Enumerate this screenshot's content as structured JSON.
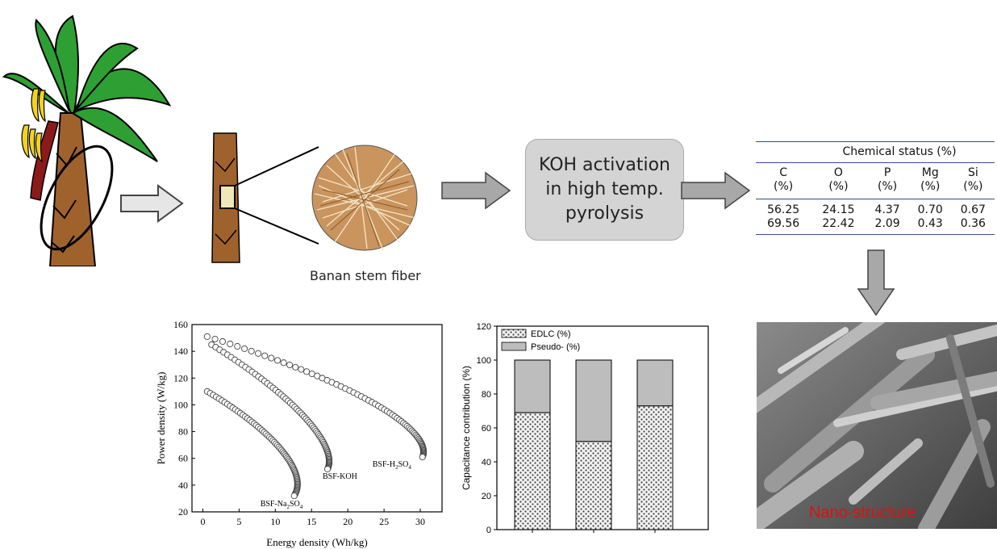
{
  "process": {
    "caption": "Banan stem fiber",
    "activation_lines": [
      "KOH activation",
      "in high temp.",
      "pyrolysis"
    ]
  },
  "chemical_table": {
    "title": "Chemical status (%)",
    "headers": [
      [
        "C",
        "(%)"
      ],
      [
        "O",
        "(%)"
      ],
      [
        "P",
        "(%)"
      ],
      [
        "Mg",
        "(%)"
      ],
      [
        "Si",
        "(%)"
      ]
    ],
    "rows": [
      [
        "56.25",
        "24.15",
        "4.37",
        "0.70",
        "0.67"
      ],
      [
        "69.56",
        "22.42",
        "2.09",
        "0.43",
        "0.36"
      ]
    ]
  },
  "sem": {
    "label": "Nano-structure"
  },
  "chart_data": [
    {
      "type": "scatter",
      "xlabel": "Energy density (Wh/kg)",
      "ylabel": "Power density (W/kg)",
      "xlim": [
        -1.5,
        33
      ],
      "ylim": [
        20,
        160
      ],
      "xticks": [
        0,
        5,
        10,
        15,
        20,
        25,
        30
      ],
      "yticks": [
        20,
        40,
        60,
        80,
        100,
        120,
        140,
        160
      ],
      "series": [
        {
          "name": "BSF-Na2SO4",
          "label_main": "BSF-Na",
          "label_sub": "2",
          "label_end": "SO",
          "label_sub2": "4",
          "start": [
            0.6,
            110
          ],
          "end": [
            12.6,
            32
          ],
          "bend": [
            10.5,
            78
          ],
          "bendback": [
            14.5,
            48
          ]
        },
        {
          "name": "BSF-KOH",
          "label_main": "BSF-KOH",
          "start": [
            1.2,
            145
          ],
          "end": [
            17.2,
            52
          ],
          "bend": [
            14.5,
            100
          ],
          "bendback": [
            18.5,
            66
          ]
        },
        {
          "name": "BSF-H2SO4",
          "label_main": "BSF-H",
          "label_sub": "2",
          "label_end": "SO",
          "label_sub2": "4",
          "start": [
            0.6,
            151
          ],
          "end": [
            30.3,
            61
          ],
          "bend": [
            26,
            108
          ],
          "bendback": [
            31.5,
            75
          ]
        }
      ]
    },
    {
      "type": "bar",
      "ylabel": "Capacitance contribution (%)",
      "ylim": [
        0,
        120
      ],
      "yticks": [
        0,
        20,
        40,
        60,
        80,
        100,
        120
      ],
      "legend": [
        "EDLC (%)",
        "Pseudo- (%)"
      ],
      "series": [
        {
          "name": "EDLC (%)",
          "values": [
            69,
            52,
            73
          ]
        },
        {
          "name": "Pseudo- (%)",
          "values": [
            31,
            48,
            27
          ]
        }
      ]
    }
  ]
}
